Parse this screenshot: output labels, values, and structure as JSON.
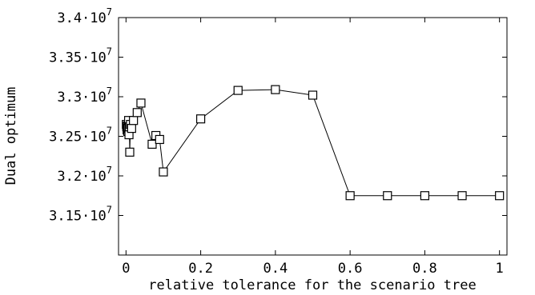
{
  "chart_data": {
    "type": "line",
    "title": "",
    "xlabel": "relative tolerance for the scenario tree",
    "ylabel": "Dual optimum",
    "xlim": [
      -0.02,
      1.02
    ],
    "ylim": [
      31000000,
      34000000
    ],
    "grid": false,
    "x_ticks": [
      {
        "value": 0,
        "label": "0"
      },
      {
        "value": 0.2,
        "label": "0.2"
      },
      {
        "value": 0.4,
        "label": "0.4"
      },
      {
        "value": 0.6,
        "label": "0.6"
      },
      {
        "value": 0.8,
        "label": "0.8"
      },
      {
        "value": 1,
        "label": "1"
      }
    ],
    "y_ticks": [
      {
        "value": 31500000,
        "mantissa": "3.15",
        "exponent": "7"
      },
      {
        "value": 32000000,
        "mantissa": "3.2",
        "exponent": "7"
      },
      {
        "value": 32500000,
        "mantissa": "3.25",
        "exponent": "7"
      },
      {
        "value": 33000000,
        "mantissa": "3.3",
        "exponent": "7"
      },
      {
        "value": 33500000,
        "mantissa": "3.35",
        "exponent": "7"
      },
      {
        "value": 34000000,
        "mantissa": "3.4",
        "exponent": "7"
      }
    ],
    "series": [
      {
        "marker": "square",
        "x": [
          0.001,
          0.002,
          0.003,
          0.004,
          0.005,
          0.006,
          0.007,
          0.008,
          0.009,
          0.01,
          0.012,
          0.015,
          0.02,
          0.03,
          0.04,
          0.07,
          0.08,
          0.09,
          0.1,
          0.2,
          0.3,
          0.4,
          0.5,
          0.6,
          0.7,
          0.8,
          0.9,
          1.0
        ],
        "y": [
          32650000,
          32620000,
          32580000,
          32630000,
          32560000,
          32600000,
          32700000,
          32520000,
          32620000,
          32300000,
          32650000,
          32600000,
          32700000,
          32800000,
          32920000,
          32400000,
          32510000,
          32460000,
          32050000,
          32720000,
          33080000,
          33090000,
          33020000,
          31750000,
          31750000,
          31750000,
          31750000,
          31750000
        ]
      }
    ]
  }
}
